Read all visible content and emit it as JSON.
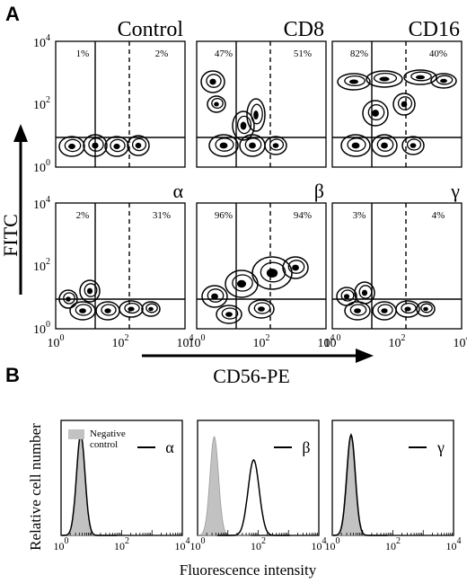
{
  "figure": {
    "panel_a_label": "A",
    "panel_b_label": "B"
  },
  "panel_a": {
    "y_axis_title": "FITC",
    "x_axis_title": "CD56-PE",
    "y_ticks": [
      {
        "base": "10",
        "exp": "4"
      },
      {
        "base": "10",
        "exp": "2"
      },
      {
        "base": "10",
        "exp": "0"
      }
    ],
    "x_ticks": [
      {
        "base": "10",
        "exp": "0"
      },
      {
        "base": "10",
        "exp": "2"
      },
      {
        "base": "10",
        "exp": "4"
      }
    ],
    "plots": [
      {
        "title": "Control",
        "left_pct": "1%",
        "right_pct": "2%"
      },
      {
        "title": "CD8",
        "left_pct": "47%",
        "right_pct": "51%"
      },
      {
        "title": "CD16",
        "left_pct": "82%",
        "right_pct": "40%"
      },
      {
        "title": "α",
        "left_pct": "2%",
        "right_pct": "31%"
      },
      {
        "title": "β",
        "left_pct": "96%",
        "right_pct": "94%"
      },
      {
        "title": "γ",
        "left_pct": "3%",
        "right_pct": "4%"
      }
    ]
  },
  "panel_b": {
    "y_axis_title": "Relative cell number",
    "x_axis_title": "Fluorescence intensity",
    "legend_negative_control": [
      "Negative",
      "control"
    ],
    "x_ticks": [
      {
        "base": "10",
        "exp": "0"
      },
      {
        "base": "10",
        "exp": "2"
      },
      {
        "base": "10",
        "exp": "4"
      }
    ],
    "histograms": [
      {
        "title": "α",
        "negative_peak_log": 0.65,
        "sample_peak_log": 0.65
      },
      {
        "title": "β",
        "negative_peak_log": 0.55,
        "sample_peak_log": 1.85
      },
      {
        "title": "γ",
        "negative_peak_log": 0.6,
        "sample_peak_log": 0.62
      }
    ]
  },
  "chart_data": [
    {
      "type": "scatter",
      "title": "Control",
      "xlabel": "CD56-PE",
      "ylabel": "FITC",
      "xscale": "log",
      "yscale": "log",
      "xlim": [
        1,
        10000
      ],
      "ylim": [
        1,
        10000
      ],
      "quadrant_percentages": [
        "1%",
        "2%"
      ]
    },
    {
      "type": "scatter",
      "title": "CD8",
      "xlabel": "CD56-PE",
      "ylabel": "FITC",
      "xscale": "log",
      "yscale": "log",
      "xlim": [
        1,
        10000
      ],
      "ylim": [
        1,
        10000
      ],
      "quadrant_percentages": [
        "47%",
        "51%"
      ]
    },
    {
      "type": "scatter",
      "title": "CD16",
      "xlabel": "CD56-PE",
      "ylabel": "FITC",
      "xscale": "log",
      "yscale": "log",
      "xlim": [
        1,
        10000
      ],
      "ylim": [
        1,
        10000
      ],
      "quadrant_percentages": [
        "82%",
        "40%"
      ]
    },
    {
      "type": "scatter",
      "title": "α",
      "xlabel": "CD56-PE",
      "ylabel": "FITC",
      "xscale": "log",
      "yscale": "log",
      "xlim": [
        1,
        10000
      ],
      "ylim": [
        1,
        10000
      ],
      "quadrant_percentages": [
        "2%",
        "31%"
      ]
    },
    {
      "type": "scatter",
      "title": "β",
      "xlabel": "CD56-PE",
      "ylabel": "FITC",
      "xscale": "log",
      "yscale": "log",
      "xlim": [
        1,
        10000
      ],
      "ylim": [
        1,
        10000
      ],
      "quadrant_percentages": [
        "96%",
        "94%"
      ]
    },
    {
      "type": "scatter",
      "title": "γ",
      "xlabel": "CD56-PE",
      "ylabel": "FITC",
      "xscale": "log",
      "yscale": "log",
      "xlim": [
        1,
        10000
      ],
      "ylim": [
        1,
        10000
      ],
      "quadrant_percentages": [
        "3%",
        "4%"
      ]
    },
    {
      "type": "area",
      "title": "α",
      "xlabel": "Fluorescence intensity",
      "ylabel": "Relative cell number",
      "xscale": "log",
      "xlim": [
        1,
        10000
      ],
      "series": [
        {
          "name": "Negative control",
          "peak": 4.5
        },
        {
          "name": "α",
          "peak": 4.5
        }
      ]
    },
    {
      "type": "area",
      "title": "β",
      "xlabel": "Fluorescence intensity",
      "ylabel": "Relative cell number",
      "xscale": "log",
      "xlim": [
        1,
        10000
      ],
      "series": [
        {
          "name": "Negative control",
          "peak": 3.5
        },
        {
          "name": "β",
          "peak": 70
        }
      ]
    },
    {
      "type": "area",
      "title": "γ",
      "xlabel": "Fluorescence intensity",
      "ylabel": "Relative cell number",
      "xscale": "log",
      "xlim": [
        1,
        10000
      ],
      "series": [
        {
          "name": "Negative control",
          "peak": 4
        },
        {
          "name": "γ",
          "peak": 4.2
        }
      ]
    }
  ]
}
